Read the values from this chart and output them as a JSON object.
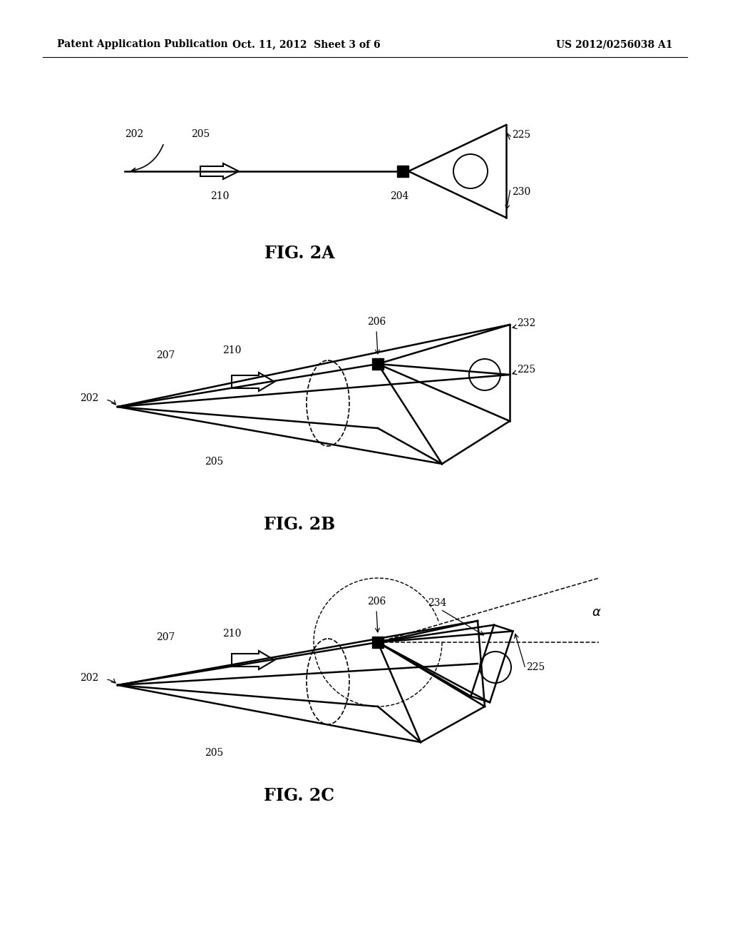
{
  "header_left": "Patent Application Publication",
  "header_mid": "Oct. 11, 2012  Sheet 3 of 6",
  "header_right": "US 2012/0256038 A1",
  "fig2a_label": "FIG. 2A",
  "fig2b_label": "FIG. 2B",
  "fig2c_label": "FIG. 2C",
  "bg_color": "#ffffff",
  "line_color": "#000000"
}
